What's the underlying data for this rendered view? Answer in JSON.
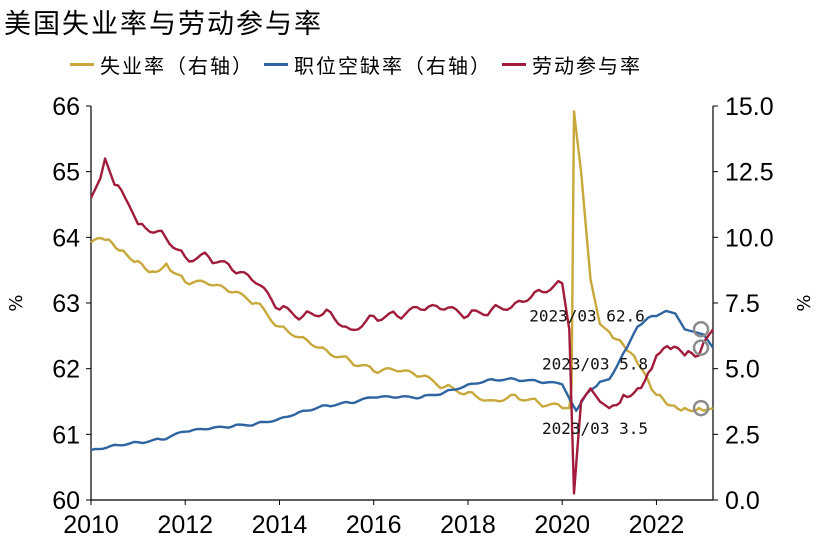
{
  "chart_data": {
    "type": "line",
    "title": "美国失业率与劳动参与率",
    "x_range": [
      2010.0,
      2023.2
    ],
    "x_ticks": [
      "2010",
      "2012",
      "2014",
      "2016",
      "2018",
      "2020",
      "2022"
    ],
    "left_axis": {
      "label": "%",
      "range": [
        60,
        66
      ],
      "ticks": [
        "60",
        "61",
        "62",
        "63",
        "64",
        "65",
        "66"
      ]
    },
    "right_axis": {
      "label": "%",
      "range": [
        0.0,
        15.0
      ],
      "ticks": [
        "0.0",
        "2.5",
        "5.0",
        "7.5",
        "10.0",
        "12.5",
        "15.0"
      ]
    },
    "grid": false,
    "legend_position": "top",
    "series": [
      {
        "name": "失业率（右轴）",
        "axis": "right",
        "color": "#c8a83a",
        "points": [
          [
            2010.0,
            9.8
          ],
          [
            2010.3,
            9.9
          ],
          [
            2010.6,
            9.5
          ],
          [
            2011.0,
            9.1
          ],
          [
            2011.3,
            8.7
          ],
          [
            2011.6,
            9.0
          ],
          [
            2012.0,
            8.3
          ],
          [
            2012.5,
            8.2
          ],
          [
            2013.0,
            7.9
          ],
          [
            2013.5,
            7.5
          ],
          [
            2014.0,
            6.6
          ],
          [
            2014.5,
            6.2
          ],
          [
            2015.0,
            5.7
          ],
          [
            2015.5,
            5.3
          ],
          [
            2016.0,
            4.9
          ],
          [
            2016.5,
            4.9
          ],
          [
            2017.0,
            4.7
          ],
          [
            2017.5,
            4.3
          ],
          [
            2018.0,
            4.1
          ],
          [
            2018.5,
            3.8
          ],
          [
            2019.0,
            4.0
          ],
          [
            2019.5,
            3.7
          ],
          [
            2020.0,
            3.5
          ],
          [
            2020.15,
            3.5
          ],
          [
            2020.2,
            4.4
          ],
          [
            2020.25,
            14.8
          ],
          [
            2020.4,
            12.5
          ],
          [
            2020.6,
            8.4
          ],
          [
            2020.8,
            6.7
          ],
          [
            2021.0,
            6.4
          ],
          [
            2021.3,
            5.9
          ],
          [
            2021.6,
            5.2
          ],
          [
            2021.9,
            4.2
          ],
          [
            2022.0,
            4.0
          ],
          [
            2022.3,
            3.6
          ],
          [
            2022.6,
            3.5
          ],
          [
            2022.9,
            3.5
          ],
          [
            2023.0,
            3.4
          ],
          [
            2023.2,
            3.5
          ]
        ]
      },
      {
        "name": "职位空缺率（右轴）",
        "axis": "right",
        "color": "#2e64a0",
        "points": [
          [
            2010.0,
            1.9
          ],
          [
            2010.5,
            2.1
          ],
          [
            2011.0,
            2.2
          ],
          [
            2011.5,
            2.3
          ],
          [
            2012.0,
            2.6
          ],
          [
            2012.5,
            2.7
          ],
          [
            2013.0,
            2.8
          ],
          [
            2013.5,
            2.9
          ],
          [
            2014.0,
            3.1
          ],
          [
            2014.5,
            3.4
          ],
          [
            2015.0,
            3.6
          ],
          [
            2015.5,
            3.7
          ],
          [
            2016.0,
            3.9
          ],
          [
            2016.5,
            3.9
          ],
          [
            2017.0,
            3.9
          ],
          [
            2017.5,
            4.1
          ],
          [
            2018.0,
            4.4
          ],
          [
            2018.5,
            4.6
          ],
          [
            2019.0,
            4.6
          ],
          [
            2019.5,
            4.5
          ],
          [
            2020.0,
            4.4
          ],
          [
            2020.2,
            3.7
          ],
          [
            2020.3,
            3.4
          ],
          [
            2020.5,
            4.0
          ],
          [
            2020.8,
            4.5
          ],
          [
            2021.0,
            4.6
          ],
          [
            2021.3,
            5.6
          ],
          [
            2021.6,
            6.6
          ],
          [
            2021.9,
            7.0
          ],
          [
            2022.0,
            7.0
          ],
          [
            2022.2,
            7.2
          ],
          [
            2022.4,
            7.1
          ],
          [
            2022.6,
            6.5
          ],
          [
            2022.8,
            6.4
          ],
          [
            2023.0,
            6.3
          ],
          [
            2023.2,
            5.8
          ]
        ]
      },
      {
        "name": "劳动参与率",
        "axis": "left",
        "color": "#a01c3a",
        "points": [
          [
            2010.0,
            64.6
          ],
          [
            2010.2,
            64.9
          ],
          [
            2010.3,
            65.2
          ],
          [
            2010.5,
            64.8
          ],
          [
            2010.8,
            64.5
          ],
          [
            2011.0,
            64.2
          ],
          [
            2011.5,
            64.1
          ],
          [
            2012.0,
            63.7
          ],
          [
            2012.5,
            63.7
          ],
          [
            2013.0,
            63.5
          ],
          [
            2013.5,
            63.3
          ],
          [
            2014.0,
            62.9
          ],
          [
            2014.5,
            62.8
          ],
          [
            2015.0,
            62.9
          ],
          [
            2015.5,
            62.6
          ],
          [
            2016.0,
            62.8
          ],
          [
            2016.5,
            62.8
          ],
          [
            2017.0,
            62.9
          ],
          [
            2017.5,
            62.9
          ],
          [
            2018.0,
            62.8
          ],
          [
            2018.5,
            62.9
          ],
          [
            2019.0,
            63.0
          ],
          [
            2019.5,
            63.2
          ],
          [
            2020.0,
            63.3
          ],
          [
            2020.15,
            62.6
          ],
          [
            2020.25,
            60.1
          ],
          [
            2020.4,
            61.5
          ],
          [
            2020.6,
            61.7
          ],
          [
            2020.8,
            61.5
          ],
          [
            2021.0,
            61.4
          ],
          [
            2021.3,
            61.6
          ],
          [
            2021.6,
            61.7
          ],
          [
            2021.9,
            62.0
          ],
          [
            2022.0,
            62.2
          ],
          [
            2022.3,
            62.3
          ],
          [
            2022.6,
            62.2
          ],
          [
            2022.9,
            62.2
          ],
          [
            2023.0,
            62.4
          ],
          [
            2023.2,
            62.6
          ]
        ]
      }
    ],
    "annotations": [
      {
        "text": "2023/03  62.6",
        "series": 2,
        "x": 2023.2,
        "y": 62.6,
        "axis": "left"
      },
      {
        "text": "2023/03  5.8",
        "series": 1,
        "x": 2023.2,
        "y": 5.8,
        "axis": "right"
      },
      {
        "text": "2023/03  3.5",
        "series": 0,
        "x": 2023.2,
        "y": 3.5,
        "axis": "right"
      }
    ]
  }
}
